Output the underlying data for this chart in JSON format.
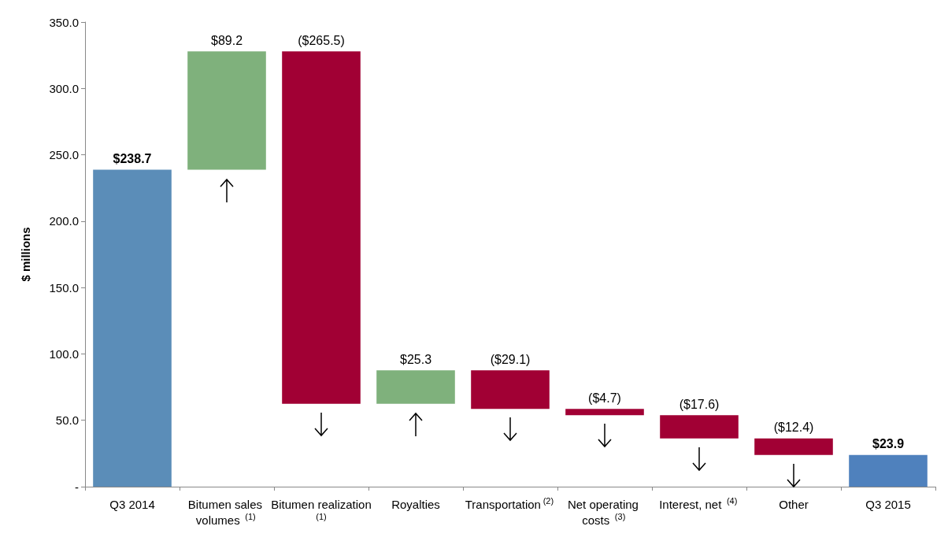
{
  "chart_data": {
    "type": "bar",
    "ylabel": "$ millions",
    "categories": [
      "Q3 2014",
      "Bitumen sales volumes $^{(1)}$",
      "Bitumen realization$^{(1)}$",
      "Royalties",
      "Transportation$^{(2)}$",
      "Net operating costs $^{(3)}$",
      "Interest, net $^{(4)}$",
      "Other",
      "Q3 2015"
    ],
    "values": [
      238.7,
      89.2,
      -265.5,
      25.3,
      -29.1,
      -4.7,
      -17.6,
      -12.4,
      23.9
    ],
    "base": [
      null,
      238.7,
      327.9,
      62.4,
      87.7,
      58.6,
      53.9,
      36.3,
      null
    ],
    "colors": [
      "#5b8db8",
      "#7fb17c",
      "#a10034",
      "#7fb17c",
      "#a10034",
      "#a10034",
      "#a10034",
      "#a10034",
      "#4f81bd"
    ],
    "value_labels": [
      "$238.7",
      "$89.2",
      "($265.5)",
      "$25.3",
      "($29.1)",
      "($4.7)",
      "($17.6)",
      "($12.4)",
      "$23.9"
    ],
    "ylim": [
      0,
      350
    ],
    "yticks": [
      {
        "value": 0,
        "label": "-"
      },
      {
        "value": 50,
        "label": "50.0"
      },
      {
        "value": 100,
        "label": "100.0"
      },
      {
        "value": 150,
        "label": "150.0"
      },
      {
        "value": 200,
        "label": "200.0"
      },
      {
        "value": 250,
        "label": "250.0"
      },
      {
        "value": 300,
        "label": "300.0"
      },
      {
        "value": 350,
        "label": "350.0"
      }
    ],
    "grid": false
  }
}
